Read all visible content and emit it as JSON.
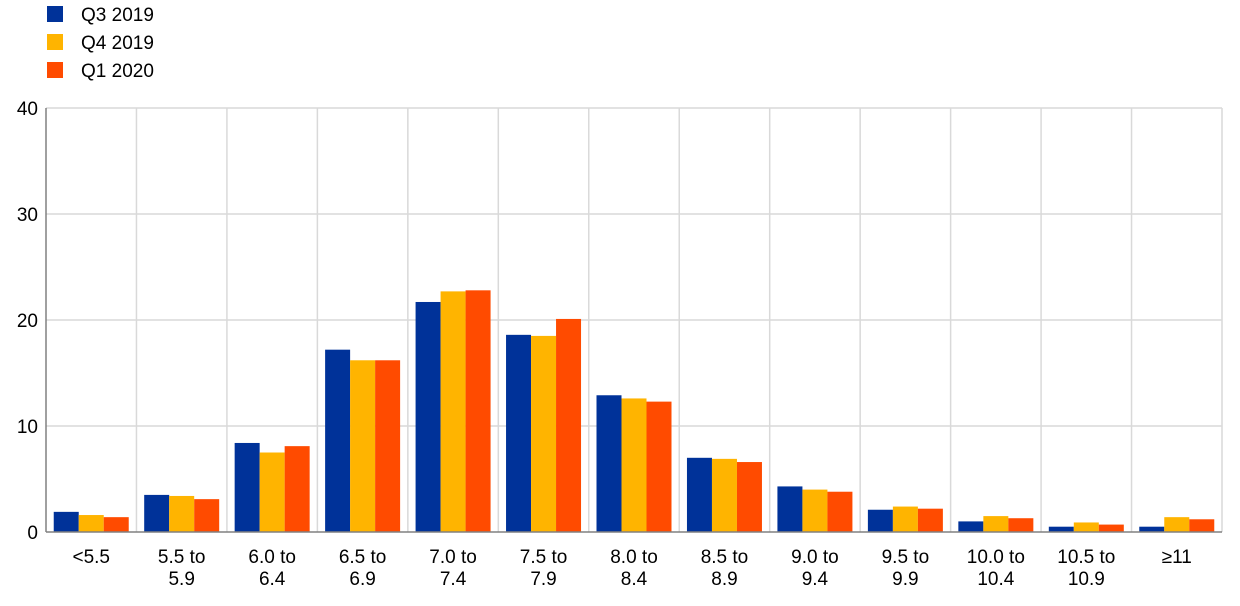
{
  "chart_data": {
    "type": "bar",
    "title": "",
    "xlabel": "",
    "ylabel": "",
    "ylim": [
      0,
      40
    ],
    "yticks": [
      0,
      10,
      20,
      30,
      40
    ],
    "grid": true,
    "legend_position": "top-left",
    "categories": [
      [
        "<5.5"
      ],
      [
        "5.5 to",
        "5.9"
      ],
      [
        "6.0 to",
        "6.4"
      ],
      [
        "6.5 to",
        "6.9"
      ],
      [
        "7.0 to",
        "7.4"
      ],
      [
        "7.5 to",
        "7.9"
      ],
      [
        "8.0 to",
        "8.4"
      ],
      [
        "8.5 to",
        "8.9"
      ],
      [
        "9.0 to",
        "9.4"
      ],
      [
        "9.5 to",
        "9.9"
      ],
      [
        "10.0 to",
        "10.4"
      ],
      [
        "10.5 to",
        "10.9"
      ],
      [
        "≥11"
      ]
    ],
    "series": [
      {
        "name": "Q3 2019",
        "color": "#003299",
        "values": [
          1.9,
          3.5,
          8.4,
          17.2,
          21.7,
          18.6,
          12.9,
          7.0,
          4.3,
          2.1,
          1.0,
          0.5,
          0.5
        ]
      },
      {
        "name": "Q4 2019",
        "color": "#FFB400",
        "values": [
          1.6,
          3.4,
          7.5,
          16.2,
          22.7,
          18.5,
          12.6,
          6.9,
          4.0,
          2.4,
          1.5,
          0.9,
          1.4
        ]
      },
      {
        "name": "Q1 2020",
        "color": "#FF4B00",
        "values": [
          1.4,
          3.1,
          8.1,
          16.2,
          22.8,
          20.1,
          12.3,
          6.6,
          3.8,
          2.2,
          1.3,
          0.7,
          1.2
        ]
      }
    ],
    "colors": {
      "grid": "#D9D9D9",
      "axis": "#808080"
    }
  }
}
